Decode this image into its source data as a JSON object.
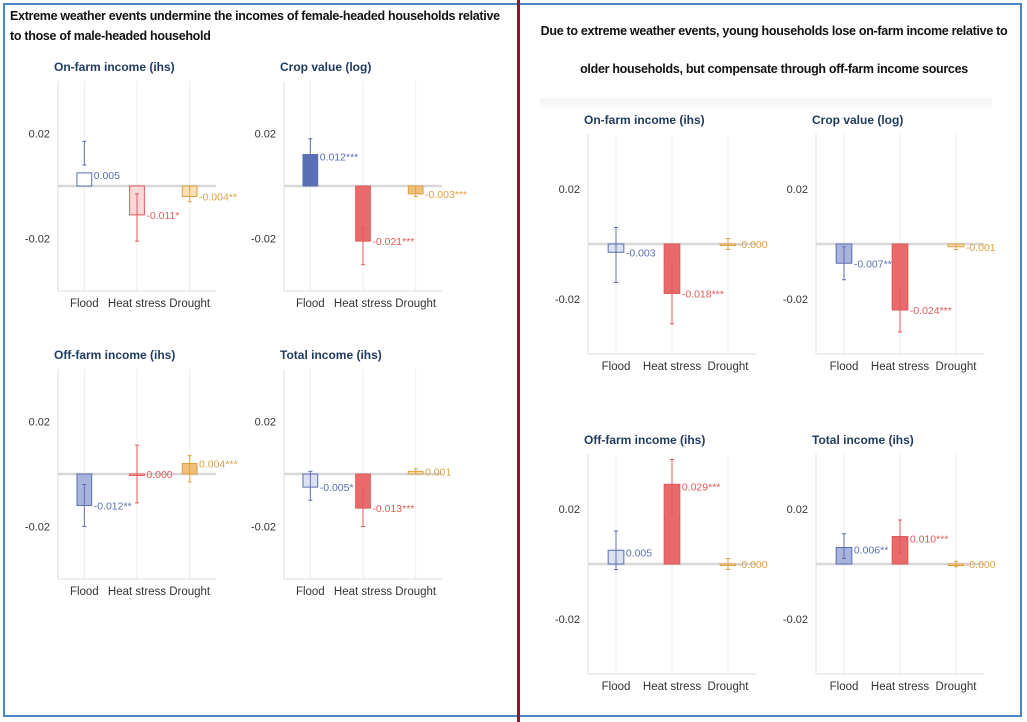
{
  "colors": {
    "frame": "#4a86c6",
    "divider": "#8b1a2a",
    "flood": "#5a6fb4",
    "heat": "#e05a5a",
    "drought": "#e0a040",
    "title": "#1f3a5f"
  },
  "panels": {
    "left": {
      "heading": "Extreme weather events undermine the incomes of female-headed households relative to those of male-headed household"
    },
    "right": {
      "heading": "Due to extreme weather events, young households lose on-farm income relative to older households, but compensate through off-farm income sources"
    }
  },
  "chart_data": [
    {
      "type": "bar",
      "group": "left",
      "title": "On-farm income (ihs)",
      "categories": [
        "Flood",
        "Heat stress",
        "Drought"
      ],
      "values": [
        0.005,
        -0.011,
        -0.004
      ],
      "ci": [
        [
          0.008,
          0.017
        ],
        [
          -0.021,
          -0.003
        ],
        [
          -0.006,
          0.0
        ]
      ],
      "labels": [
        "0.005",
        "-0.011*",
        "-0.004**"
      ],
      "fill": [
        "#ffffff",
        "#f8dada",
        "#f7e0b8"
      ],
      "yticks": [
        0.02,
        -0.02
      ],
      "ylim": [
        -0.04,
        0.04
      ]
    },
    {
      "type": "bar",
      "group": "left",
      "title": "Crop value (log)",
      "categories": [
        "Flood",
        "Heat stress",
        "Drought"
      ],
      "values": [
        0.012,
        -0.021,
        -0.003
      ],
      "ci": [
        [
          0.006,
          0.018
        ],
        [
          -0.03,
          -0.016
        ],
        [
          -0.004,
          0.0
        ]
      ],
      "labels": [
        "0.012***",
        "-0.021***",
        "-0.003***"
      ],
      "fill": [
        "#5a6fb4",
        "#e86a6a",
        "#f0c07a"
      ],
      "yticks": [
        0.02,
        -0.02
      ],
      "ylim": [
        -0.04,
        0.04
      ]
    },
    {
      "type": "bar",
      "group": "left",
      "title": "Off-farm income (ihs)",
      "categories": [
        "Flood",
        "Heat stress",
        "Drought"
      ],
      "values": [
        -0.012,
        0.0,
        0.004
      ],
      "ci": [
        [
          -0.02,
          -0.004
        ],
        [
          -0.011,
          0.011
        ],
        [
          -0.003,
          0.007
        ]
      ],
      "labels": [
        "-0.012**",
        "0.000",
        "0.004***"
      ],
      "fill": [
        "#a9b4dc",
        "#f8dada",
        "#f0c07a"
      ],
      "yticks": [
        0.02,
        -0.02
      ],
      "ylim": [
        -0.04,
        0.04
      ]
    },
    {
      "type": "bar",
      "group": "left",
      "title": "Total income (ihs)",
      "categories": [
        "Flood",
        "Heat stress",
        "Drought"
      ],
      "values": [
        -0.005,
        -0.013,
        0.001
      ],
      "ci": [
        [
          -0.01,
          0.001
        ],
        [
          -0.02,
          -0.006
        ],
        [
          0.0,
          0.002
        ]
      ],
      "labels": [
        "-0.005*",
        "-0.013***",
        "0.001"
      ],
      "fill": [
        "#dde2f2",
        "#e86a6a",
        "#f7e0b8"
      ],
      "yticks": [
        0.02,
        -0.02
      ],
      "ylim": [
        -0.04,
        0.04
      ]
    },
    {
      "type": "bar",
      "group": "right",
      "title": "On-farm income (ihs)",
      "categories": [
        "Flood",
        "Heat stress",
        "Drought"
      ],
      "values": [
        -0.003,
        -0.018,
        0.0
      ],
      "ci": [
        [
          -0.014,
          0.006
        ],
        [
          -0.029,
          -0.006
        ],
        [
          -0.002,
          0.002
        ]
      ],
      "labels": [
        "-0.003",
        "-0.018***",
        "-0.000"
      ],
      "fill": [
        "#dde2f2",
        "#e86a6a",
        "#f7e0b8"
      ],
      "yticks": [
        0.02,
        -0.02
      ],
      "ylim": [
        -0.04,
        0.04
      ]
    },
    {
      "type": "bar",
      "group": "right",
      "title": "Crop value (log)",
      "categories": [
        "Flood",
        "Heat stress",
        "Drought"
      ],
      "values": [
        -0.007,
        -0.024,
        -0.001
      ],
      "ci": [
        [
          -0.013,
          -0.001
        ],
        [
          -0.032,
          -0.016
        ],
        [
          -0.002,
          0.0
        ]
      ],
      "labels": [
        "-0.007**",
        "-0.024***",
        "-0.001"
      ],
      "fill": [
        "#a9b4dc",
        "#e86a6a",
        "#f7e0b8"
      ],
      "yticks": [
        0.02,
        -0.02
      ],
      "ylim": [
        -0.04,
        0.04
      ]
    },
    {
      "type": "bar",
      "group": "right",
      "title": "Off-farm income (ihs)",
      "categories": [
        "Flood",
        "Heat stress",
        "Drought"
      ],
      "values": [
        0.005,
        0.029,
        0.0
      ],
      "ci": [
        [
          -0.002,
          0.012
        ],
        [
          0.018,
          0.038
        ],
        [
          -0.002,
          0.002
        ]
      ],
      "labels": [
        "0.005",
        "0.029***",
        "-0.000"
      ],
      "fill": [
        "#dde2f2",
        "#e86a6a",
        "#f7e0b8"
      ],
      "yticks": [
        0.02,
        -0.02
      ],
      "ylim": [
        -0.04,
        0.04
      ]
    },
    {
      "type": "bar",
      "group": "right",
      "title": "Total income (ihs)",
      "categories": [
        "Flood",
        "Heat stress",
        "Drought"
      ],
      "values": [
        0.006,
        0.01,
        0.0
      ],
      "ci": [
        [
          0.002,
          0.011
        ],
        [
          0.004,
          0.016
        ],
        [
          -0.001,
          0.001
        ]
      ],
      "labels": [
        "0.006**",
        "0.010***",
        "-0.000"
      ],
      "fill": [
        "#a9b4dc",
        "#e86a6a",
        "#f7e0b8"
      ],
      "yticks": [
        0.02,
        -0.02
      ],
      "ylim": [
        -0.04,
        0.04
      ]
    }
  ]
}
